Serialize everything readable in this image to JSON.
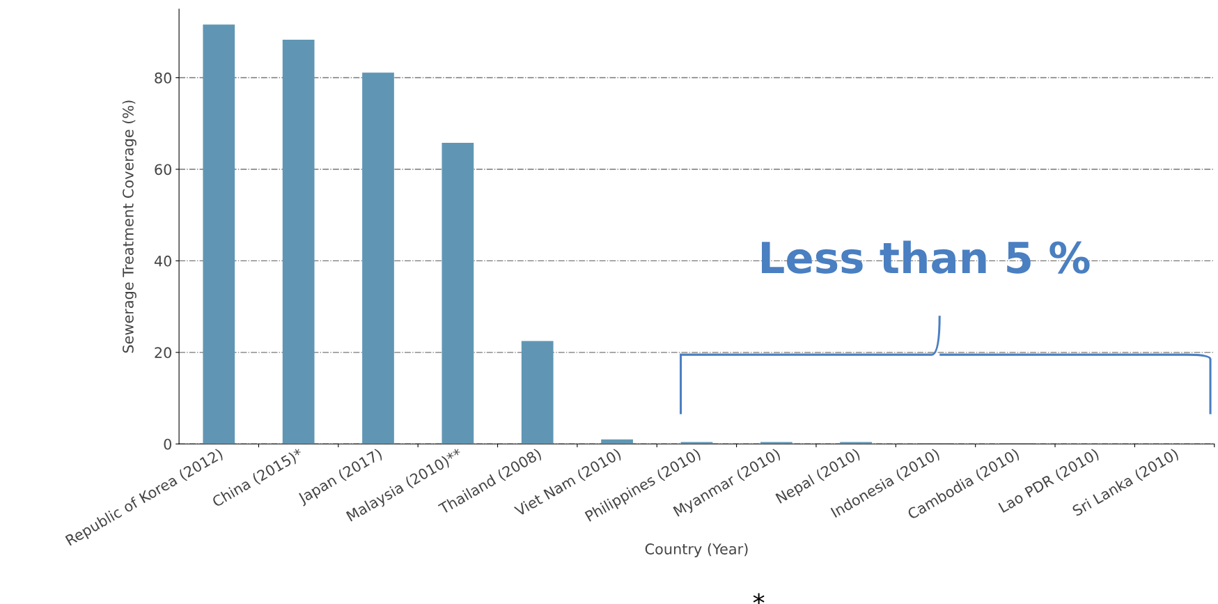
{
  "chart_data": {
    "type": "bar",
    "categories": [
      "Republic of Korea (2012)",
      "China (2015)*",
      "Japan (2017)",
      "Malaysia (2010)**",
      "Thailand (2008)",
      "Viet Nam (2010)",
      "Philippines (2010)",
      "Myanmar (2010)",
      "Nepal (2010)",
      "Indonesia (2010)",
      "Cambodia (2010)",
      "Lao PDR (2010)",
      "Sri Lanka (2010)"
    ],
    "values": [
      91.6,
      88.3,
      81.1,
      65.8,
      22.5,
      1.0,
      0.4,
      0.4,
      0.4,
      0.2,
      0.2,
      0,
      0
    ],
    "color": "#6096b4",
    "xlabel": "Country (Year)",
    "ylabel": "Sewerage Treatment Coverage (%)",
    "ylim": [
      0,
      95
    ],
    "yticks": [
      0,
      20,
      40,
      60,
      80
    ],
    "grid": "y",
    "annotations": [
      "Less than 5 %",
      "*"
    ]
  }
}
